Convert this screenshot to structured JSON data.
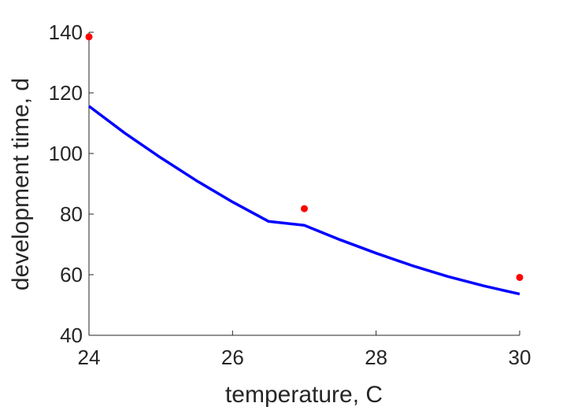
{
  "chart_data": {
    "type": "scatter",
    "title": "",
    "xlabel": "temperature, C",
    "ylabel": "development time, d",
    "xlim": [
      24,
      30
    ],
    "ylim": [
      40,
      140
    ],
    "xticks": [
      24,
      26,
      28,
      30
    ],
    "yticks": [
      40,
      60,
      80,
      100,
      120,
      140
    ],
    "xtick_labels": [
      "24",
      "26",
      "28",
      "30"
    ],
    "ytick_labels": [
      "40",
      "60",
      "80",
      "100",
      "120",
      "140"
    ],
    "grid": false,
    "legend": "none",
    "series": [
      {
        "kind": "points",
        "color": "#ff0000",
        "x": [
          24,
          27,
          30
        ],
        "y": [
          138.5,
          81.8,
          59.1
        ]
      },
      {
        "kind": "line",
        "color": "#0000ff",
        "x": [
          24,
          24.5,
          25,
          25.5,
          26,
          26.5,
          27,
          27.5,
          28,
          28.5,
          29,
          29.5,
          30
        ],
        "y": [
          115.6,
          106.7,
          98.6,
          91.0,
          84.0,
          77.6,
          76.3,
          71.5,
          67.1,
          63.0,
          59.4,
          56.3,
          53.6
        ]
      }
    ]
  }
}
